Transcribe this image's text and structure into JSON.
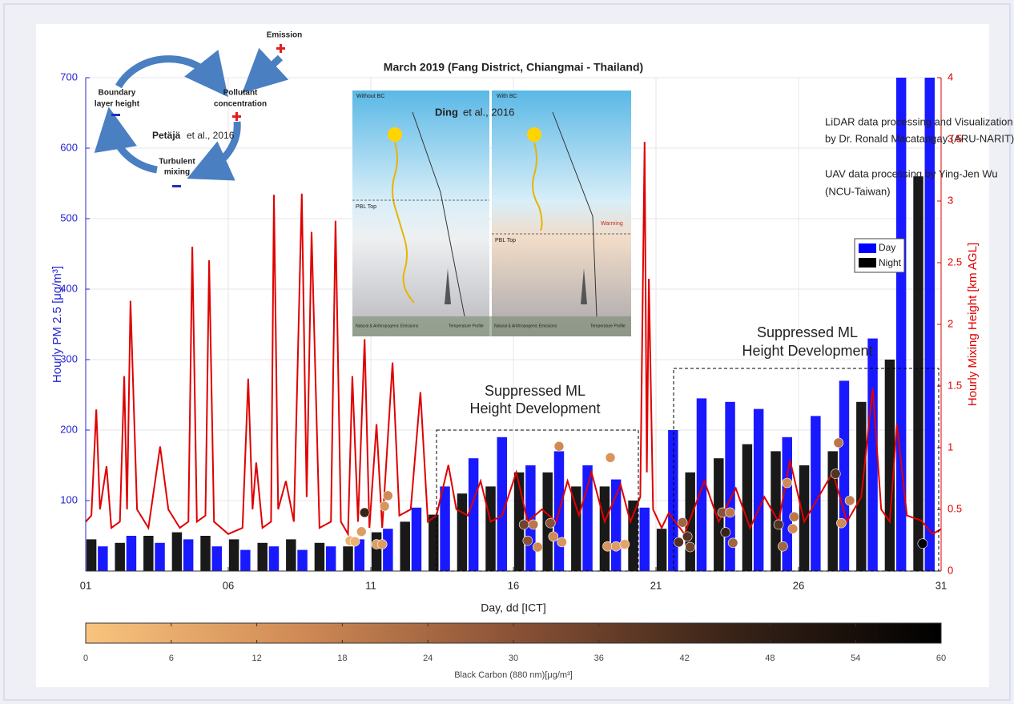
{
  "chart_data": {
    "type": "bar",
    "title": "March 2019 (Fang District, Chiangmai - Thailand)",
    "ylabel": "Hourly PM 2.5 [μg/m³]",
    "y2label": "Hourly Mixing Height [km AGL]",
    "xlabel": "Day, dd [ICT]",
    "xlim": [
      1,
      31
    ],
    "xticks": [
      {
        "value": 1,
        "label": "01"
      },
      {
        "value": 6,
        "label": "06"
      },
      {
        "value": 11,
        "label": "11"
      },
      {
        "value": 16,
        "label": "16"
      },
      {
        "value": 21,
        "label": "21"
      },
      {
        "value": 26,
        "label": "26"
      },
      {
        "value": 31,
        "label": "31"
      }
    ],
    "ylim": [
      0,
      700
    ],
    "yticks": [
      100,
      200,
      300,
      400,
      500,
      600,
      700
    ],
    "y2lim": [
      0,
      4
    ],
    "y2ticks": [
      0,
      0.5,
      1,
      1.5,
      2,
      2.5,
      3,
      3.5,
      4
    ],
    "grid": true,
    "legend": "upper right",
    "series": [
      {
        "name": "Day",
        "color": "#0000ff",
        "x": [
          1.6,
          2.6,
          3.6,
          4.6,
          5.6,
          6.6,
          7.6,
          8.6,
          9.6,
          10.6,
          11.6,
          12.6,
          13.6,
          14.6,
          15.6,
          16.6,
          17.6,
          18.6,
          19.6,
          20.6,
          21.6,
          22.6,
          23.6,
          24.6,
          25.6,
          26.6,
          27.6,
          28.6,
          29.6,
          30.6
        ],
        "values": [
          35,
          50,
          40,
          45,
          35,
          30,
          35,
          30,
          35,
          45,
          60,
          90,
          120,
          160,
          190,
          150,
          170,
          150,
          130,
          90,
          200,
          245,
          240,
          230,
          190,
          220,
          270,
          330,
          700,
          700
        ]
      },
      {
        "name": "Night",
        "color": "#000000",
        "x": [
          1.2,
          2.2,
          3.2,
          4.2,
          5.2,
          6.2,
          7.2,
          8.2,
          9.2,
          10.2,
          11.2,
          12.2,
          13.2,
          14.2,
          15.2,
          16.2,
          17.2,
          18.2,
          19.2,
          20.2,
          21.2,
          22.2,
          23.2,
          24.2,
          25.2,
          26.2,
          27.2,
          28.2,
          29.2,
          30.2
        ],
        "values": [
          45,
          40,
          50,
          55,
          50,
          45,
          40,
          45,
          40,
          35,
          55,
          70,
          80,
          110,
          120,
          140,
          140,
          120,
          120,
          100,
          60,
          140,
          160,
          180,
          170,
          150,
          170,
          240,
          300,
          560
        ]
      }
    ],
    "mixing_height": {
      "type": "line",
      "axis": "y2",
      "color": "#e00000",
      "x": [
        1.0,
        1.2,
        1.37,
        1.5,
        1.73,
        1.9,
        2.2,
        2.35,
        2.45,
        2.57,
        2.8,
        3.2,
        3.61,
        3.9,
        4.3,
        4.6,
        4.74,
        4.9,
        5.2,
        5.33,
        5.5,
        6.0,
        6.5,
        6.7,
        6.85,
        6.98,
        7.2,
        7.5,
        7.6,
        7.75,
        8.02,
        8.3,
        8.58,
        8.75,
        8.92,
        9.2,
        9.6,
        9.76,
        9.95,
        10.2,
        10.35,
        10.55,
        10.78,
        10.95,
        11.2,
        11.4,
        11.76,
        12.0,
        12.4,
        12.74,
        13.0,
        13.3,
        13.72,
        14.0,
        14.4,
        14.85,
        15.2,
        15.6,
        16.1,
        16.5,
        17.0,
        17.5,
        17.9,
        18.3,
        18.74,
        19.2,
        19.76,
        20.1,
        20.45,
        20.6,
        20.68,
        20.75,
        20.9,
        21.2,
        21.45,
        22.0,
        22.7,
        23.2,
        23.8,
        24.3,
        24.8,
        25.3,
        25.7,
        26.2,
        26.7,
        27.2,
        27.7,
        28.2,
        28.6,
        28.9,
        29.2,
        29.45,
        29.8,
        30.3,
        30.7,
        31.0
      ],
      "values": [
        0.4,
        0.45,
        1.31,
        0.5,
        0.85,
        0.35,
        0.4,
        1.58,
        0.5,
        2.19,
        0.5,
        0.35,
        1.01,
        0.5,
        0.35,
        0.4,
        2.63,
        0.4,
        0.45,
        2.52,
        0.4,
        0.3,
        0.35,
        1.56,
        0.5,
        0.88,
        0.35,
        0.4,
        3.05,
        0.5,
        0.73,
        0.4,
        3.06,
        0.6,
        2.75,
        0.35,
        0.4,
        2.84,
        0.4,
        0.3,
        1.58,
        0.4,
        1.88,
        0.35,
        1.19,
        0.35,
        1.69,
        0.45,
        0.5,
        1.45,
        0.4,
        0.45,
        0.86,
        0.5,
        0.45,
        0.73,
        0.4,
        0.45,
        0.8,
        0.4,
        0.5,
        0.4,
        0.73,
        0.45,
        0.8,
        0.4,
        0.7,
        0.4,
        0.6,
        3.48,
        0.8,
        2.37,
        0.5,
        0.35,
        0.47,
        0.3,
        0.73,
        0.4,
        0.67,
        0.35,
        0.6,
        0.4,
        0.9,
        0.4,
        0.6,
        0.8,
        0.4,
        0.6,
        1.48,
        0.5,
        0.4,
        1.19,
        0.45,
        0.41,
        0.3,
        0.34
      ]
    },
    "black_carbon": {
      "type": "scatter",
      "x": [
        10.27,
        10.44,
        10.78,
        10.67,
        11.2,
        11.4,
        11.48,
        11.6,
        17.6,
        19.4,
        16.37,
        16.7,
        16.5,
        16.85,
        17.3,
        17.4,
        17.7,
        19.3,
        19.6,
        19.9,
        21.93,
        22.1,
        22.2,
        21.8,
        23.33,
        23.44,
        23.6,
        23.7,
        25.3,
        25.45,
        25.6,
        25.8,
        25.85,
        27.4,
        27.3,
        27.5,
        27.8,
        30.35
      ],
      "values": [
        43,
        42,
        83,
        56,
        38,
        38,
        92,
        107,
        177,
        161,
        66,
        66,
        43,
        34,
        68,
        49,
        41,
        35,
        35,
        38,
        69,
        49,
        34,
        41,
        83,
        55,
        83,
        40,
        66,
        35,
        125,
        60,
        77,
        182,
        138,
        68,
        100,
        39
      ],
      "bc": [
        5,
        5,
        45,
        10,
        10,
        10,
        12,
        15,
        15,
        12,
        35,
        20,
        30,
        15,
        30,
        15,
        12,
        12,
        10,
        8,
        25,
        40,
        35,
        40,
        30,
        45,
        20,
        25,
        40,
        25,
        15,
        15,
        20,
        20,
        40,
        15,
        18,
        60
      ]
    },
    "colorbar": {
      "label": "Black Carbon (880 nm)[μg/m³]",
      "lim": [
        0,
        60
      ],
      "ticks": [
        0,
        6,
        12,
        18,
        24,
        30,
        36,
        42,
        48,
        54,
        60
      ],
      "colors": [
        "#f9c47e",
        "#d08a55",
        "#8a5236",
        "#3a2418",
        "#000000"
      ]
    },
    "annotations": {
      "credits_lidar": [
        "LiDAR data processing and Visualization",
        "by Dr. Ronald Macatangay (ARU-NARIT)"
      ],
      "credits_uav": [
        "UAV data processing by Ying-Jen Wu",
        "(NCU-Taiwan)"
      ],
      "suppressed_1": [
        "Suppressed ML",
        "Height Development"
      ],
      "suppressed_2": [
        "Suppressed ML",
        "Height Development"
      ]
    }
  },
  "cycle_diagram": {
    "emission": "Emission",
    "boundary": [
      "Boundary",
      "layer height"
    ],
    "pollutant": [
      "Pollutant",
      "concentration"
    ],
    "mixing": [
      "Turbulent",
      "mixing"
    ],
    "author": "Petäjä",
    "ref": "et al., 2016"
  },
  "bc_figure": {
    "left_title": "Without BC",
    "right_title": "With BC",
    "author": "Ding",
    "ref": "et al., 2016",
    "pbl_left": "PBL Top",
    "pbl_right": "PBL Top",
    "warming": "Warming",
    "emis_left": "Natural & Anthropogenic Emissions",
    "emis_right": "Natural & Anthropogenic Emissions",
    "temp_left": "Temperature Profile",
    "temp_right": "Temperature Profile"
  }
}
